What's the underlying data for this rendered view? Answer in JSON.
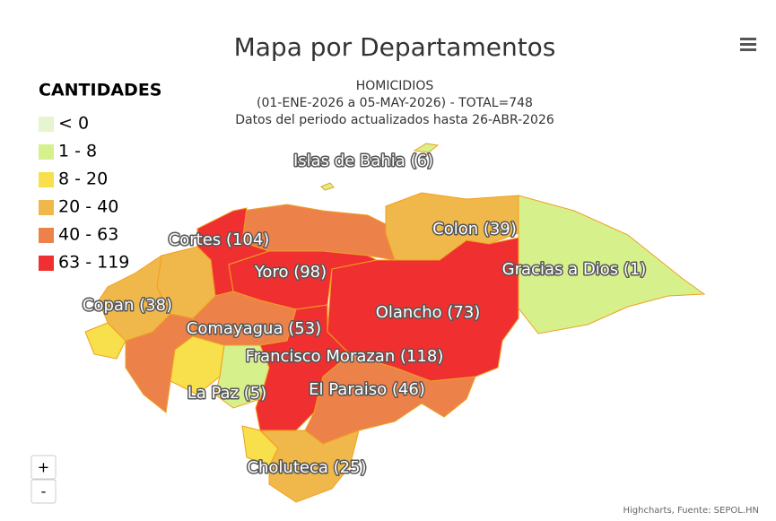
{
  "header": {
    "title": "Mapa por Departamentos",
    "subtitle": [
      "HOMICIDIOS",
      "(01-ENE-2026 a 05-MAY-2026) - TOTAL=748",
      "Datos del periodo actualizados hasta 26-ABR-2026"
    ]
  },
  "legend": {
    "title": "CANTIDADES",
    "items": [
      {
        "label": "< 0",
        "color": "#e6f5d0",
        "to": 0
      },
      {
        "label": "1 - 8",
        "color": "#d6f08c",
        "from": 1,
        "to": 8
      },
      {
        "label": "8 - 20",
        "color": "#f7e04b",
        "from": 8,
        "to": 20
      },
      {
        "label": "20 - 40",
        "color": "#f0b84a",
        "from": 20,
        "to": 40
      },
      {
        "label": "40 - 63",
        "color": "#ec824a",
        "from": 40,
        "to": 63
      },
      {
        "label": "63 - 119",
        "color": "#f03030",
        "from": 63,
        "to": 119
      }
    ]
  },
  "regions": [
    {
      "name": "Islas de Bahia",
      "value": 6,
      "value_label": "(6)"
    },
    {
      "name": "Cortes",
      "value": 104,
      "value_label": "(104)"
    },
    {
      "name": "Colon",
      "value": 39,
      "value_label": "(39)"
    },
    {
      "name": "Yoro",
      "value": 98,
      "value_label": "(98)"
    },
    {
      "name": "Gracias a Dios",
      "value": 1,
      "value_label": "(1)"
    },
    {
      "name": "Copan",
      "value": 38,
      "value_label": "(38)"
    },
    {
      "name": "Olancho",
      "value": 73,
      "value_label": "(73)"
    },
    {
      "name": "Comayagua",
      "value": 53,
      "value_label": "(53)"
    },
    {
      "name": "Francisco Morazan",
      "value": 118,
      "value_label": "(118)"
    },
    {
      "name": "La Paz",
      "value": 5,
      "value_label": "(5)"
    },
    {
      "name": "El Paraiso",
      "value": 46,
      "value_label": "(46)"
    },
    {
      "name": "Choluteca",
      "value": 25,
      "value_label": "(25)"
    }
  ],
  "zoom": {
    "in": "+",
    "out": "-"
  },
  "credits": "Highcharts, Fuente: SEPOL.HN"
}
